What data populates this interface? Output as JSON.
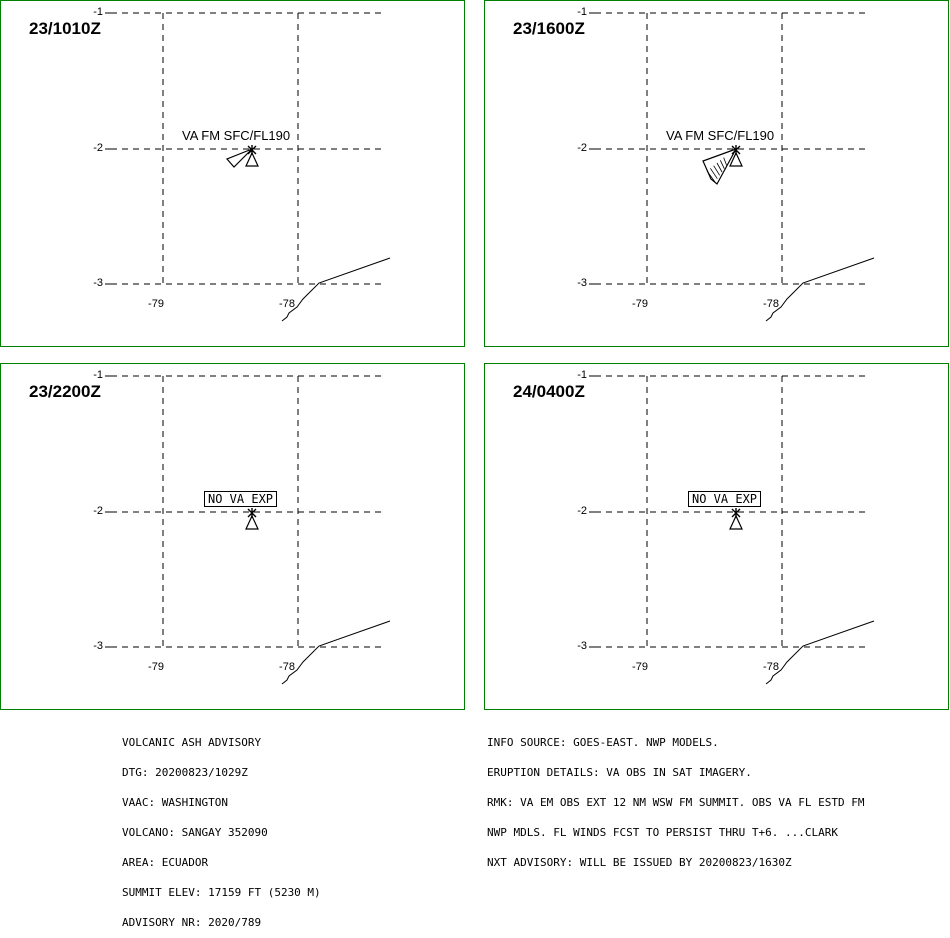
{
  "panels": [
    {
      "time": "23/1010Z",
      "annotation": "VA FM SFC/FL190",
      "annotation_boxed": false,
      "ash": "small"
    },
    {
      "time": "23/1600Z",
      "annotation": "VA FM SFC/FL190",
      "annotation_boxed": false,
      "ash": "large"
    },
    {
      "time": "23/2200Z",
      "annotation": "NO VA EXP",
      "annotation_boxed": true,
      "ash": "none"
    },
    {
      "time": "24/0400Z",
      "annotation": "NO VA EXP",
      "annotation_boxed": true,
      "ash": "none"
    }
  ],
  "grid": {
    "lat_labels": [
      "-1",
      "-2",
      "-3"
    ],
    "lon_labels": [
      "-79",
      "-78"
    ]
  },
  "advisory_left": [
    "VOLCANIC ASH ADVISORY",
    "DTG: 20200823/1029Z",
    "VAAC: WASHINGTON",
    "VOLCANO: SANGAY 352090",
    "AREA: ECUADOR",
    "SUMMIT ELEV: 17159 FT (5230 M)",
    "ADVISORY NR: 2020/789"
  ],
  "advisory_right": [
    "INFO SOURCE: GOES-EAST. NWP MODELS.",
    "ERUPTION DETAILS: VA OBS IN SAT IMAGERY.",
    "RMK: VA EM OBS EXT 12 NM WSW FM SUMMIT. OBS VA FL ESTD FM",
    "NWP MDLS. FL WINDS FCST TO PERSIST THRU T+6. ...CLARK",
    "NXT ADVISORY: WILL BE ISSUED BY 20200823/1630Z"
  ],
  "colors": {
    "frame": "#008000",
    "line": "#000000"
  }
}
